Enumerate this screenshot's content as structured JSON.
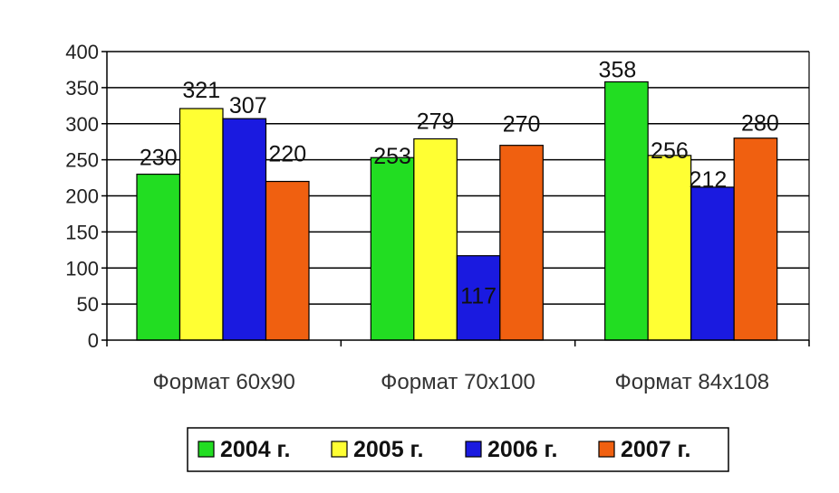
{
  "chart_data": {
    "type": "bar",
    "categories": [
      "Формат 60x90",
      "Формат 70x100",
      "Формат 84x108"
    ],
    "series": [
      {
        "name": "2004 г.",
        "values": [
          230,
          253,
          358
        ],
        "color": "#22dd22"
      },
      {
        "name": "2005 г.",
        "values": [
          321,
          279,
          256
        ],
        "color": "#ffff33"
      },
      {
        "name": "2006 г.",
        "values": [
          307,
          117,
          212
        ],
        "color": "#1a1ae0"
      },
      {
        "name": "2007 г.",
        "values": [
          220,
          270,
          280
        ],
        "color": "#f06010"
      }
    ],
    "yticks": [
      "0",
      "50",
      "100",
      "150",
      "200",
      "250",
      "300",
      "350",
      "400"
    ],
    "ylim": [
      0,
      400
    ],
    "grid": true,
    "legend_position": "bottom"
  }
}
